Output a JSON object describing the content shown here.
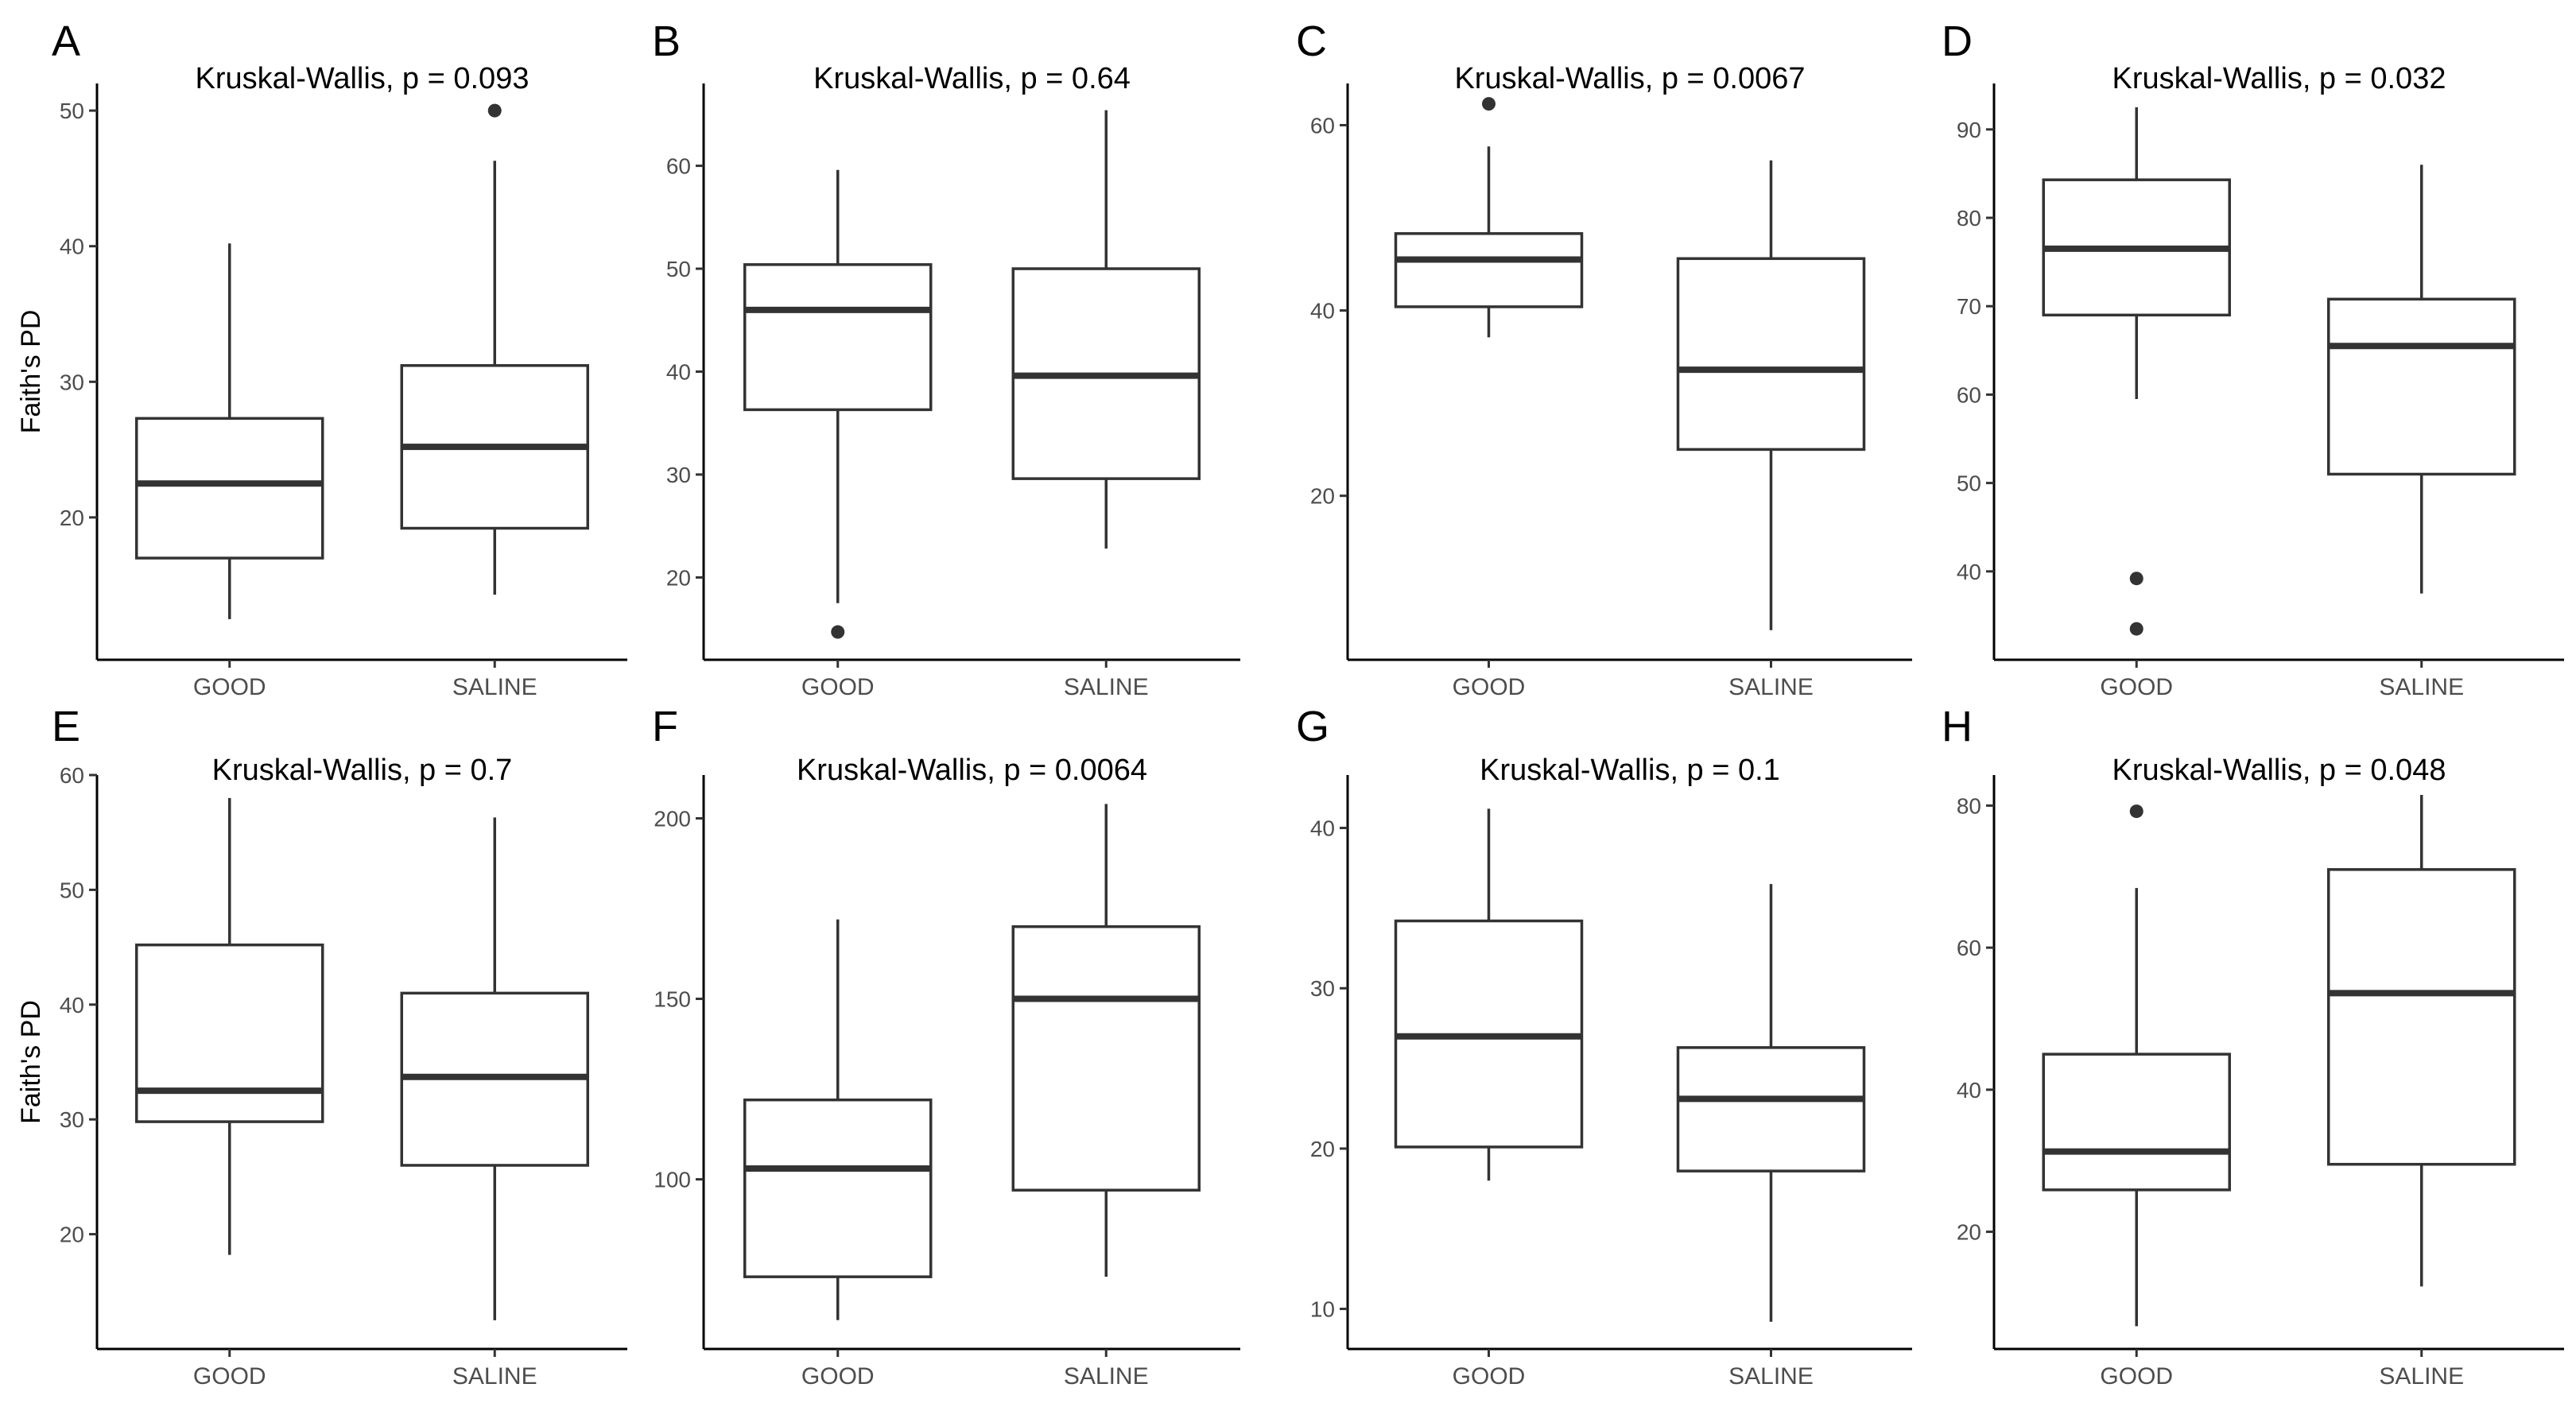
{
  "ylabel_text": "Faith's PD",
  "chart_data": [
    {
      "type": "box",
      "panel": "A",
      "title": "Kruskal-Wallis, p = 0.093",
      "ylabel": "Faith's PD",
      "categories": [
        "GOOD",
        "SALINE"
      ],
      "ylim": [
        9.5,
        52
      ],
      "yticks": [
        20,
        30,
        40,
        50
      ],
      "boxes": [
        {
          "name": "GOOD",
          "whisker_low": 12.5,
          "q1": 17,
          "median": 22.5,
          "q3": 27.3,
          "whisker_high": 40.2,
          "outliers": []
        },
        {
          "name": "SALINE",
          "whisker_low": 14.3,
          "q1": 19.2,
          "median": 25.2,
          "q3": 31.2,
          "whisker_high": 46.3,
          "outliers": [
            50
          ]
        }
      ]
    },
    {
      "type": "box",
      "panel": "B",
      "title": "Kruskal-Wallis, p = 0.64",
      "ylabel": "",
      "categories": [
        "GOOD",
        "SALINE"
      ],
      "ylim": [
        12,
        68
      ],
      "yticks": [
        20,
        30,
        40,
        50,
        60
      ],
      "boxes": [
        {
          "name": "GOOD",
          "whisker_low": 17.5,
          "q1": 36.3,
          "median": 46,
          "q3": 50.4,
          "whisker_high": 59.6,
          "outliers": [
            14.7
          ]
        },
        {
          "name": "SALINE",
          "whisker_low": 22.8,
          "q1": 29.6,
          "median": 39.6,
          "q3": 50,
          "whisker_high": 65.4,
          "outliers": []
        }
      ]
    },
    {
      "type": "box",
      "panel": "C",
      "title": "Kruskal-Wallis, p = 0.0067",
      "ylabel": "",
      "categories": [
        "GOOD",
        "SALINE"
      ],
      "ylim": [
        2.3,
        64.5
      ],
      "yticks": [
        20,
        40,
        60
      ],
      "boxes": [
        {
          "name": "GOOD",
          "whisker_low": 37.1,
          "q1": 40.4,
          "median": 45.5,
          "q3": 48.3,
          "whisker_high": 57.7,
          "outliers": [
            62.3
          ]
        },
        {
          "name": "SALINE",
          "whisker_low": 5.5,
          "q1": 25,
          "median": 33.6,
          "q3": 45.6,
          "whisker_high": 56.2,
          "outliers": []
        }
      ]
    },
    {
      "type": "box",
      "panel": "D",
      "title": "Kruskal-Wallis, p = 0.032",
      "ylabel": "",
      "categories": [
        "GOOD",
        "SALINE"
      ],
      "ylim": [
        30,
        95.2
      ],
      "yticks": [
        40,
        50,
        60,
        70,
        80,
        90
      ],
      "boxes": [
        {
          "name": "GOOD",
          "whisker_low": 59.5,
          "q1": 69,
          "median": 76.5,
          "q3": 84.3,
          "whisker_high": 92.5,
          "outliers": [
            39.2,
            33.5
          ]
        },
        {
          "name": "SALINE",
          "whisker_low": 37.5,
          "q1": 51,
          "median": 65.5,
          "q3": 70.8,
          "whisker_high": 86,
          "outliers": []
        }
      ]
    },
    {
      "type": "box",
      "panel": "E",
      "title": "Kruskal-Wallis, p = 0.7",
      "ylabel": "Faith's PD",
      "categories": [
        "GOOD",
        "SALINE"
      ],
      "ylim": [
        10,
        60
      ],
      "yticks": [
        20,
        30,
        40,
        50,
        60
      ],
      "boxes": [
        {
          "name": "GOOD",
          "whisker_low": 18.2,
          "q1": 29.8,
          "median": 32.5,
          "q3": 45.2,
          "whisker_high": 58,
          "outliers": []
        },
        {
          "name": "SALINE",
          "whisker_low": 12.5,
          "q1": 26,
          "median": 33.7,
          "q3": 41,
          "whisker_high": 56.3,
          "outliers": []
        }
      ]
    },
    {
      "type": "box",
      "panel": "F",
      "title": "Kruskal-Wallis, p = 0.0064",
      "ylabel": "",
      "categories": [
        "GOOD",
        "SALINE"
      ],
      "ylim": [
        53,
        212
      ],
      "yticks": [
        100,
        150,
        200
      ],
      "boxes": [
        {
          "name": "GOOD",
          "whisker_low": 61,
          "q1": 73,
          "median": 103,
          "q3": 122,
          "whisker_high": 172,
          "outliers": []
        },
        {
          "name": "SALINE",
          "whisker_low": 73,
          "q1": 97,
          "median": 150,
          "q3": 170,
          "whisker_high": 204,
          "outliers": []
        }
      ]
    },
    {
      "type": "box",
      "panel": "G",
      "title": "Kruskal-Wallis, p = 0.1",
      "ylabel": "",
      "categories": [
        "GOOD",
        "SALINE"
      ],
      "ylim": [
        7.5,
        43.3
      ],
      "yticks": [
        10,
        20,
        30,
        40
      ],
      "boxes": [
        {
          "name": "GOOD",
          "whisker_low": 18,
          "q1": 20.1,
          "median": 27,
          "q3": 34.2,
          "whisker_high": 41.2,
          "outliers": []
        },
        {
          "name": "SALINE",
          "whisker_low": 9.2,
          "q1": 18.6,
          "median": 23.1,
          "q3": 26.3,
          "whisker_high": 36.5,
          "outliers": []
        }
      ]
    },
    {
      "type": "box",
      "panel": "H",
      "title": "Kruskal-Wallis, p = 0.048",
      "ylabel": "",
      "categories": [
        "GOOD",
        "SALINE"
      ],
      "ylim": [
        3.5,
        84.3
      ],
      "yticks": [
        20,
        40,
        60,
        80
      ],
      "boxes": [
        {
          "name": "GOOD",
          "whisker_low": 6.7,
          "q1": 25.9,
          "median": 31.3,
          "q3": 45,
          "whisker_high": 68.4,
          "outliers": [
            79.2
          ]
        },
        {
          "name": "SALINE",
          "whisker_low": 12.3,
          "q1": 29.5,
          "median": 53.6,
          "q3": 71,
          "whisker_high": 81.5,
          "outliers": []
        }
      ]
    }
  ]
}
